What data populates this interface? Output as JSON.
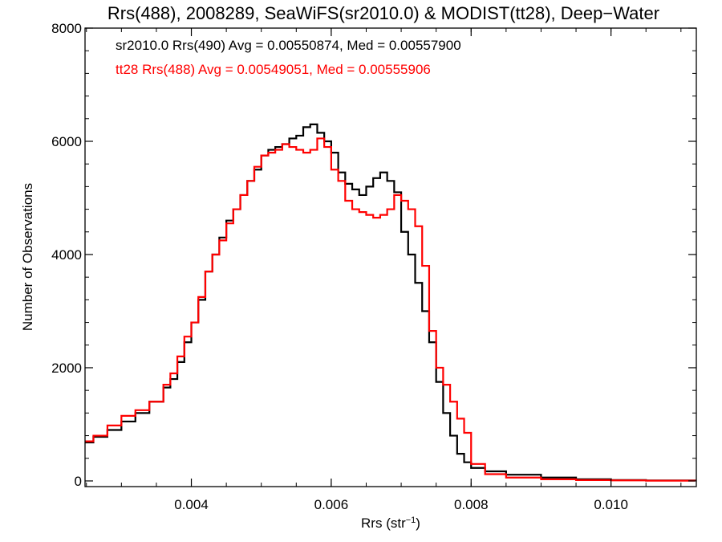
{
  "chart_data": {
    "type": "line",
    "title": "Rrs(488), 2008289, SeaWiFS(sr2010.0) & MODIST(tt28), Deep−Water",
    "xlabel": "Rrs (str",
    "xlabel_sup": "−1",
    "xlabel_close": ")",
    "ylabel": "Number of Observations",
    "xlim": [
      0.00248,
      0.01122
    ],
    "ylim": [
      -100,
      8000
    ],
    "x_ticks": [
      0.004,
      0.006,
      0.008,
      0.01
    ],
    "x_tick_labels": [
      "0.004",
      "0.006",
      "0.008",
      "0.010"
    ],
    "y_ticks": [
      0,
      2000,
      4000,
      6000,
      8000
    ],
    "y_tick_labels": [
      "0",
      "2000",
      "4000",
      "6000",
      "8000"
    ],
    "grid": false,
    "annotations": [
      {
        "text": "sr2010.0 Rrs(490) Avg = 0.00550874, Med = 0.00557900",
        "color": "#000000"
      },
      {
        "text": "tt28 Rrs(488) Avg = 0.00549051, Med = 0.00555906",
        "color": "#ff0000"
      }
    ],
    "series": [
      {
        "name": "sr2010.0 Rrs(490)",
        "color": "#000000",
        "points": [
          [
            0.00248,
            680
          ],
          [
            0.0026,
            780
          ],
          [
            0.0028,
            900
          ],
          [
            0.003,
            1050
          ],
          [
            0.0032,
            1200
          ],
          [
            0.0034,
            1400
          ],
          [
            0.0036,
            1650
          ],
          [
            0.0037,
            1800
          ],
          [
            0.0038,
            2100
          ],
          [
            0.0039,
            2450
          ],
          [
            0.004,
            2800
          ],
          [
            0.0041,
            3200
          ],
          [
            0.0042,
            3700
          ],
          [
            0.0043,
            4000
          ],
          [
            0.0044,
            4300
          ],
          [
            0.0045,
            4600
          ],
          [
            0.0046,
            4800
          ],
          [
            0.0047,
            5050
          ],
          [
            0.0048,
            5300
          ],
          [
            0.0049,
            5500
          ],
          [
            0.005,
            5750
          ],
          [
            0.0051,
            5850
          ],
          [
            0.0052,
            5900
          ],
          [
            0.0053,
            5950
          ],
          [
            0.0054,
            6050
          ],
          [
            0.0055,
            6100
          ],
          [
            0.0056,
            6250
          ],
          [
            0.0057,
            6300
          ],
          [
            0.0058,
            6150
          ],
          [
            0.0059,
            6000
          ],
          [
            0.006,
            5800
          ],
          [
            0.0061,
            5450
          ],
          [
            0.0062,
            5250
          ],
          [
            0.0063,
            5150
          ],
          [
            0.0064,
            5050
          ],
          [
            0.0065,
            5200
          ],
          [
            0.0066,
            5350
          ],
          [
            0.0067,
            5450
          ],
          [
            0.0068,
            5300
          ],
          [
            0.0069,
            5100
          ],
          [
            0.007,
            4400
          ],
          [
            0.0071,
            4000
          ],
          [
            0.0072,
            3500
          ],
          [
            0.0073,
            3000
          ],
          [
            0.0074,
            2450
          ],
          [
            0.0075,
            1750
          ],
          [
            0.0076,
            1200
          ],
          [
            0.0077,
            800
          ],
          [
            0.0078,
            480
          ],
          [
            0.0079,
            330
          ],
          [
            0.008,
            230
          ],
          [
            0.0082,
            170
          ],
          [
            0.0085,
            110
          ],
          [
            0.009,
            60
          ],
          [
            0.0095,
            30
          ],
          [
            0.01,
            15
          ],
          [
            0.0105,
            8
          ],
          [
            0.0112,
            5
          ]
        ]
      },
      {
        "name": "tt28 Rrs(488)",
        "color": "#ff0000",
        "points": [
          [
            0.00248,
            700
          ],
          [
            0.0026,
            800
          ],
          [
            0.0028,
            980
          ],
          [
            0.003,
            1150
          ],
          [
            0.0032,
            1250
          ],
          [
            0.0034,
            1400
          ],
          [
            0.0036,
            1700
          ],
          [
            0.0037,
            1900
          ],
          [
            0.0038,
            2200
          ],
          [
            0.0039,
            2550
          ],
          [
            0.004,
            2800
          ],
          [
            0.0041,
            3250
          ],
          [
            0.0042,
            3700
          ],
          [
            0.0043,
            4000
          ],
          [
            0.0044,
            4250
          ],
          [
            0.0045,
            4550
          ],
          [
            0.0046,
            4800
          ],
          [
            0.0047,
            5050
          ],
          [
            0.0048,
            5300
          ],
          [
            0.0049,
            5550
          ],
          [
            0.005,
            5750
          ],
          [
            0.0051,
            5800
          ],
          [
            0.0052,
            5850
          ],
          [
            0.0053,
            5950
          ],
          [
            0.0054,
            5900
          ],
          [
            0.0055,
            5850
          ],
          [
            0.0056,
            5800
          ],
          [
            0.0057,
            5850
          ],
          [
            0.0058,
            6050
          ],
          [
            0.0059,
            5900
          ],
          [
            0.006,
            5500
          ],
          [
            0.0061,
            5300
          ],
          [
            0.0062,
            4950
          ],
          [
            0.0063,
            4800
          ],
          [
            0.0064,
            4750
          ],
          [
            0.0065,
            4700
          ],
          [
            0.0066,
            4650
          ],
          [
            0.0067,
            4700
          ],
          [
            0.0068,
            4800
          ],
          [
            0.0069,
            5050
          ],
          [
            0.007,
            4950
          ],
          [
            0.0071,
            4800
          ],
          [
            0.0072,
            4500
          ],
          [
            0.0073,
            3800
          ],
          [
            0.0074,
            2650
          ],
          [
            0.0075,
            2000
          ],
          [
            0.0076,
            1700
          ],
          [
            0.0077,
            1400
          ],
          [
            0.0078,
            1100
          ],
          [
            0.0079,
            850
          ],
          [
            0.008,
            300
          ],
          [
            0.0082,
            120
          ],
          [
            0.0085,
            60
          ],
          [
            0.009,
            30
          ],
          [
            0.0095,
            15
          ],
          [
            0.01,
            10
          ],
          [
            0.0105,
            5
          ],
          [
            0.0112,
            3
          ]
        ]
      }
    ]
  }
}
